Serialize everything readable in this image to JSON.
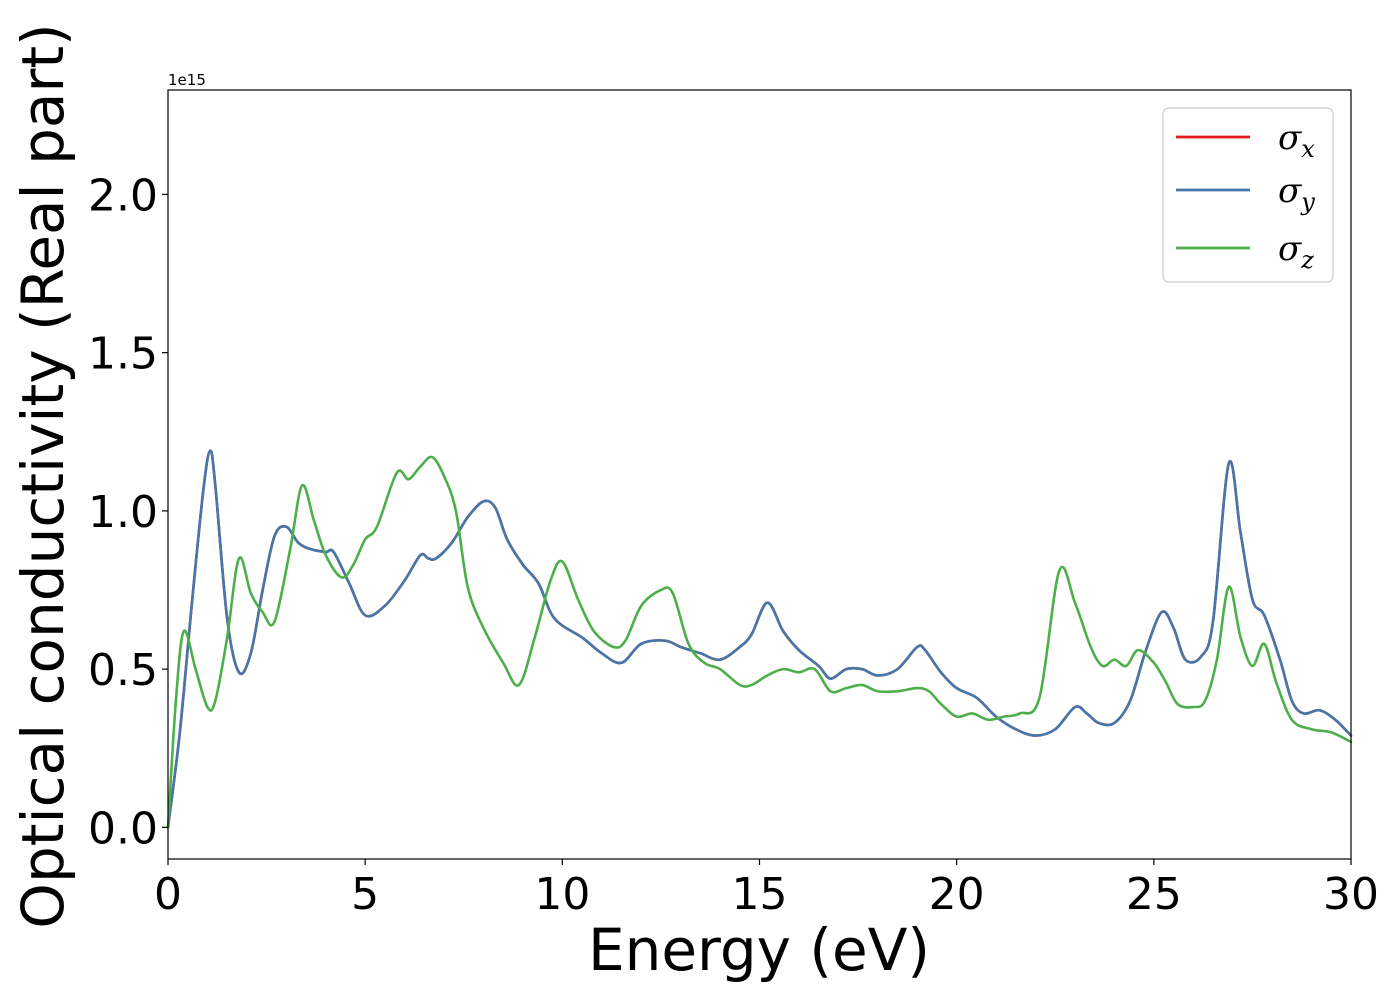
{
  "chart_data": {
    "type": "line",
    "xlabel": "Energy (eV)",
    "ylabel": "Optical conductivity (Real part)",
    "y_offset_text": "1e15",
    "xlim": [
      0,
      30
    ],
    "ylim": [
      -0.1,
      2.33
    ],
    "y_scale_factor": 1000000000000000.0,
    "xticks": [
      0,
      5,
      10,
      15,
      20,
      25,
      30
    ],
    "xtick_labels": [
      "0",
      "5",
      "10",
      "15",
      "20",
      "25",
      "30"
    ],
    "yticks": [
      0.0,
      0.5,
      1.0,
      1.5,
      2.0
    ],
    "ytick_labels": [
      "0.0",
      "0.5",
      "1.0",
      "1.5",
      "2.0"
    ],
    "grid": false,
    "legend_position": "top-right",
    "series": [
      {
        "name": "σ",
        "subscript": "x",
        "color": "#e41a1c",
        "x": [
          0,
          0.3,
          0.6,
          0.9,
          1.07,
          1.2,
          1.5,
          1.8,
          2.1,
          2.4,
          2.7,
          3.0,
          3.3,
          3.6,
          4.0,
          4.2,
          4.6,
          5.0,
          5.5,
          6.0,
          6.4,
          6.6,
          6.8,
          7.2,
          7.6,
          8.0,
          8.3,
          8.6,
          9.0,
          9.4,
          9.8,
          10.5,
          11.0,
          11.5,
          12.0,
          12.6,
          13.0,
          13.5,
          14.0,
          14.5,
          14.8,
          15.2,
          15.6,
          16.0,
          16.5,
          16.8,
          17.2,
          17.6,
          18.0,
          18.5,
          19.0,
          19.2,
          19.6,
          20.0,
          20.5,
          21.0,
          21.5,
          22.0,
          22.5,
          23.0,
          23.3,
          23.6,
          24.0,
          24.4,
          24.8,
          25.2,
          25.5,
          25.8,
          26.2,
          26.5,
          26.9,
          27.2,
          27.5,
          27.8,
          28.2,
          28.5,
          28.8,
          29.2,
          29.6,
          30.0
        ],
        "y": [
          0.0,
          0.3,
          0.7,
          1.07,
          1.19,
          1.08,
          0.66,
          0.49,
          0.55,
          0.75,
          0.92,
          0.95,
          0.9,
          0.88,
          0.87,
          0.87,
          0.77,
          0.67,
          0.7,
          0.78,
          0.86,
          0.85,
          0.85,
          0.9,
          0.98,
          1.03,
          1.01,
          0.91,
          0.83,
          0.77,
          0.66,
          0.6,
          0.55,
          0.52,
          0.58,
          0.59,
          0.57,
          0.55,
          0.53,
          0.57,
          0.61,
          0.71,
          0.62,
          0.56,
          0.51,
          0.47,
          0.5,
          0.5,
          0.48,
          0.5,
          0.57,
          0.56,
          0.49,
          0.44,
          0.41,
          0.35,
          0.31,
          0.29,
          0.31,
          0.38,
          0.36,
          0.33,
          0.33,
          0.4,
          0.56,
          0.68,
          0.63,
          0.53,
          0.54,
          0.65,
          1.15,
          0.93,
          0.72,
          0.67,
          0.53,
          0.4,
          0.36,
          0.37,
          0.34,
          0.29
        ]
      },
      {
        "name": "σ",
        "subscript": "y",
        "color": "#4477aa",
        "x": [
          0,
          0.3,
          0.6,
          0.9,
          1.07,
          1.2,
          1.5,
          1.8,
          2.1,
          2.4,
          2.7,
          3.0,
          3.3,
          3.6,
          4.0,
          4.2,
          4.6,
          5.0,
          5.5,
          6.0,
          6.4,
          6.6,
          6.8,
          7.2,
          7.6,
          8.0,
          8.3,
          8.6,
          9.0,
          9.4,
          9.8,
          10.5,
          11.0,
          11.5,
          12.0,
          12.6,
          13.0,
          13.5,
          14.0,
          14.5,
          14.8,
          15.2,
          15.6,
          16.0,
          16.5,
          16.8,
          17.2,
          17.6,
          18.0,
          18.5,
          19.0,
          19.2,
          19.6,
          20.0,
          20.5,
          21.0,
          21.5,
          22.0,
          22.5,
          23.0,
          23.3,
          23.6,
          24.0,
          24.4,
          24.8,
          25.2,
          25.5,
          25.8,
          26.2,
          26.5,
          26.9,
          27.2,
          27.5,
          27.8,
          28.2,
          28.5,
          28.8,
          29.2,
          29.6,
          30.0
        ],
        "y": [
          0.0,
          0.3,
          0.7,
          1.07,
          1.19,
          1.08,
          0.66,
          0.49,
          0.55,
          0.75,
          0.92,
          0.95,
          0.9,
          0.88,
          0.87,
          0.87,
          0.77,
          0.67,
          0.7,
          0.78,
          0.86,
          0.85,
          0.85,
          0.9,
          0.98,
          1.03,
          1.01,
          0.91,
          0.83,
          0.77,
          0.66,
          0.6,
          0.55,
          0.52,
          0.58,
          0.59,
          0.57,
          0.55,
          0.53,
          0.57,
          0.61,
          0.71,
          0.62,
          0.56,
          0.51,
          0.47,
          0.5,
          0.5,
          0.48,
          0.5,
          0.57,
          0.56,
          0.49,
          0.44,
          0.41,
          0.35,
          0.31,
          0.29,
          0.31,
          0.38,
          0.36,
          0.33,
          0.33,
          0.4,
          0.56,
          0.68,
          0.63,
          0.53,
          0.54,
          0.65,
          1.15,
          0.93,
          0.72,
          0.67,
          0.53,
          0.4,
          0.36,
          0.37,
          0.34,
          0.29
        ]
      },
      {
        "name": "σ",
        "subscript": "z",
        "color": "#4daf4a",
        "x": [
          0,
          0.2,
          0.4,
          0.7,
          1.0,
          1.2,
          1.5,
          1.8,
          2.1,
          2.4,
          2.7,
          3.1,
          3.4,
          3.7,
          4.0,
          4.4,
          4.7,
          5.0,
          5.3,
          5.8,
          6.1,
          6.4,
          6.7,
          7.0,
          7.3,
          7.6,
          8.0,
          8.5,
          8.9,
          9.3,
          9.7,
          10.0,
          10.4,
          10.8,
          11.3,
          11.6,
          12.0,
          12.5,
          12.8,
          13.2,
          13.6,
          14.0,
          14.5,
          14.8,
          15.2,
          15.6,
          16.0,
          16.4,
          16.8,
          17.2,
          17.6,
          18.0,
          18.5,
          19.0,
          19.3,
          19.6,
          20.0,
          20.4,
          20.8,
          21.2,
          21.6,
          22.1,
          22.6,
          23.0,
          23.4,
          23.7,
          24.0,
          24.3,
          24.6,
          25.0,
          25.3,
          25.6,
          26.0,
          26.3,
          26.6,
          26.9,
          27.2,
          27.5,
          27.8,
          28.1,
          28.5,
          29.0,
          29.5,
          30.0
        ],
        "y": [
          0.0,
          0.4,
          0.62,
          0.5,
          0.38,
          0.4,
          0.6,
          0.85,
          0.74,
          0.68,
          0.65,
          0.88,
          1.08,
          0.97,
          0.86,
          0.79,
          0.83,
          0.91,
          0.95,
          1.12,
          1.1,
          1.14,
          1.17,
          1.11,
          1.0,
          0.76,
          0.63,
          0.52,
          0.45,
          0.6,
          0.78,
          0.84,
          0.72,
          0.62,
          0.57,
          0.59,
          0.7,
          0.75,
          0.74,
          0.58,
          0.52,
          0.5,
          0.45,
          0.45,
          0.48,
          0.5,
          0.49,
          0.5,
          0.43,
          0.44,
          0.45,
          0.43,
          0.43,
          0.44,
          0.43,
          0.39,
          0.35,
          0.36,
          0.34,
          0.35,
          0.36,
          0.41,
          0.81,
          0.71,
          0.57,
          0.51,
          0.53,
          0.51,
          0.56,
          0.52,
          0.46,
          0.39,
          0.38,
          0.4,
          0.53,
          0.76,
          0.6,
          0.51,
          0.58,
          0.46,
          0.34,
          0.31,
          0.3,
          0.27
        ]
      }
    ]
  }
}
